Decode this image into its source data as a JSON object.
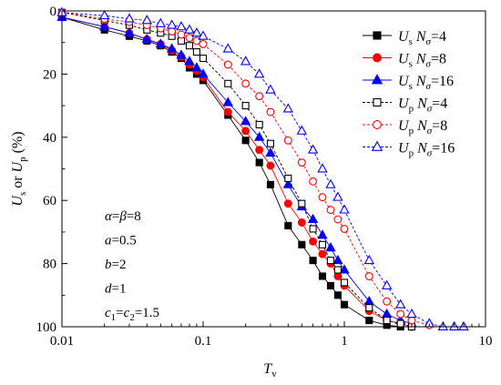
{
  "chart_data": {
    "type": "line",
    "x_scale": "log",
    "xlim": [
      0.01,
      10
    ],
    "ylim": [
      0,
      100
    ],
    "y_inverted": true,
    "grid": false,
    "legend_position": "top-right",
    "xlabel": {
      "main": "T",
      "sub": "v"
    },
    "ylabel": {
      "u1": "U",
      "s1": "s",
      "or": " or ",
      "u2": "U",
      "s2": "p",
      "unit": " (%)"
    },
    "x_ticks": [
      {
        "value": 0.01,
        "label": "0.01"
      },
      {
        "value": 0.1,
        "label": "0.1"
      },
      {
        "value": 1,
        "label": "1"
      },
      {
        "value": 10,
        "label": "10"
      }
    ],
    "y_ticks": [
      {
        "value": 0,
        "label": "0"
      },
      {
        "value": 20,
        "label": "20"
      },
      {
        "value": 40,
        "label": "40"
      },
      {
        "value": 60,
        "label": "60"
      },
      {
        "value": 80,
        "label": "80"
      },
      {
        "value": 100,
        "label": "100"
      }
    ],
    "annotations": [
      {
        "parts": [
          {
            "t": "α",
            "i": true
          },
          {
            "t": "="
          },
          {
            "t": "β",
            "i": true
          },
          {
            "t": "=8"
          }
        ]
      },
      {
        "parts": [
          {
            "t": "a",
            "i": true
          },
          {
            "t": "=0.5"
          }
        ]
      },
      {
        "parts": [
          {
            "t": "b",
            "i": true
          },
          {
            "t": "=2"
          }
        ]
      },
      {
        "parts": [
          {
            "t": "d",
            "i": true
          },
          {
            "t": "=1"
          }
        ]
      },
      {
        "parts": [
          {
            "t": "c",
            "i": true
          },
          {
            "t": "1",
            "sub": true
          },
          {
            "t": "="
          },
          {
            "t": "c",
            "i": true
          },
          {
            "t": "2",
            "sub": true
          },
          {
            "t": "=1.5"
          }
        ]
      }
    ],
    "series": [
      {
        "id": "us4",
        "legend": {
          "var": "U",
          "sub": "s",
          "n": "N",
          "sig": "σ",
          "val": "=4"
        },
        "color": "#000000",
        "marker": "square",
        "filled": true,
        "dashed": false,
        "x": [
          0.01,
          0.02,
          0.03,
          0.04,
          0.05,
          0.06,
          0.07,
          0.08,
          0.09,
          0.1,
          0.15,
          0.2,
          0.25,
          0.3,
          0.4,
          0.5,
          0.6,
          0.7,
          0.8,
          0.9,
          1.0,
          1.5,
          2.0,
          2.5,
          3.0
        ],
        "y": [
          2,
          6,
          8,
          9.5,
          11,
          13,
          15,
          18,
          20,
          22,
          33,
          41,
          48,
          55,
          68,
          74,
          79,
          84,
          87,
          90,
          93,
          98,
          99.5,
          100,
          100
        ]
      },
      {
        "id": "us8",
        "legend": {
          "var": "U",
          "sub": "s",
          "n": "N",
          "sig": "σ",
          "val": "=8"
        },
        "color": "#ff0000",
        "marker": "circle",
        "filled": true,
        "dashed": false,
        "x": [
          0.01,
          0.02,
          0.03,
          0.04,
          0.05,
          0.06,
          0.07,
          0.08,
          0.09,
          0.1,
          0.15,
          0.2,
          0.25,
          0.3,
          0.4,
          0.5,
          0.6,
          0.7,
          0.8,
          0.9,
          1.0,
          1.5,
          2.0,
          2.5,
          3.0
        ],
        "y": [
          2,
          5,
          7,
          9,
          10.5,
          12.5,
          14.5,
          17,
          19,
          21,
          32,
          38,
          44,
          49,
          61,
          67,
          73,
          77,
          80,
          84,
          87,
          95,
          98,
          99,
          100
        ]
      },
      {
        "id": "us16",
        "legend": {
          "var": "U",
          "sub": "s",
          "n": "N",
          "sig": "σ",
          "val": "=16"
        },
        "color": "#0000ff",
        "marker": "triangle",
        "filled": true,
        "dashed": false,
        "x": [
          0.01,
          0.02,
          0.03,
          0.04,
          0.05,
          0.06,
          0.07,
          0.08,
          0.09,
          0.1,
          0.15,
          0.2,
          0.25,
          0.3,
          0.4,
          0.5,
          0.6,
          0.7,
          0.8,
          0.9,
          1.0,
          1.5,
          2.0,
          2.5,
          3.0
        ],
        "y": [
          2,
          5,
          7,
          9,
          10.5,
          12,
          14,
          16,
          18,
          20,
          29,
          35,
          40,
          45,
          55,
          62,
          66,
          71,
          75,
          79,
          82,
          92,
          96,
          98,
          99
        ]
      },
      {
        "id": "up4",
        "legend": {
          "var": "U",
          "sub": "p",
          "n": "N",
          "sig": "σ",
          "val": "=4"
        },
        "color": "#000000",
        "marker": "square",
        "filled": false,
        "dashed": true,
        "x": [
          0.01,
          0.02,
          0.03,
          0.04,
          0.05,
          0.06,
          0.07,
          0.08,
          0.09,
          0.1,
          0.15,
          0.2,
          0.25,
          0.3,
          0.4,
          0.5,
          0.6,
          0.7,
          0.8,
          0.9,
          1.0,
          1.5,
          2.0,
          2.5,
          3.0
        ],
        "y": [
          0.5,
          3,
          4.5,
          6,
          7,
          8,
          9.5,
          11,
          13,
          15,
          23,
          30,
          36,
          42,
          53,
          61,
          69,
          74,
          79,
          82,
          86,
          94,
          98,
          99,
          100
        ]
      },
      {
        "id": "up8",
        "legend": {
          "var": "U",
          "sub": "p",
          "n": "N",
          "sig": "σ",
          "val": "=8"
        },
        "color": "#ff0000",
        "marker": "circle",
        "filled": false,
        "dashed": true,
        "x": [
          0.01,
          0.02,
          0.03,
          0.04,
          0.05,
          0.06,
          0.07,
          0.08,
          0.09,
          0.1,
          0.15,
          0.2,
          0.25,
          0.3,
          0.4,
          0.5,
          0.6,
          0.7,
          0.8,
          0.9,
          1.0,
          1.5,
          2.0,
          2.5,
          3.0,
          4.0
        ],
        "y": [
          0.5,
          2.5,
          3.5,
          4.5,
          5.5,
          6.5,
          7.5,
          8.5,
          9.5,
          10.5,
          17,
          23,
          27,
          32,
          41,
          48,
          54,
          59,
          63,
          66,
          69,
          84,
          92,
          96,
          98,
          99.5
        ]
      },
      {
        "id": "up16",
        "legend": {
          "var": "U",
          "sub": "p",
          "n": "N",
          "sig": "σ",
          "val": "=16"
        },
        "color": "#0000ff",
        "marker": "triangle",
        "filled": false,
        "dashed": true,
        "x": [
          0.01,
          0.02,
          0.03,
          0.04,
          0.05,
          0.06,
          0.07,
          0.08,
          0.09,
          0.1,
          0.15,
          0.2,
          0.25,
          0.3,
          0.4,
          0.5,
          0.6,
          0.7,
          0.8,
          0.9,
          1.0,
          1.5,
          2.0,
          2.5,
          3.0,
          4.0,
          5.0,
          6.0,
          7.0
        ],
        "y": [
          0.5,
          1.5,
          2.5,
          3,
          4,
          4.5,
          5,
          6,
          7,
          8,
          12,
          16,
          20,
          25,
          31,
          38,
          44,
          50,
          55,
          59,
          63,
          79,
          87,
          93,
          96,
          99,
          100,
          100,
          100
        ]
      }
    ]
  }
}
